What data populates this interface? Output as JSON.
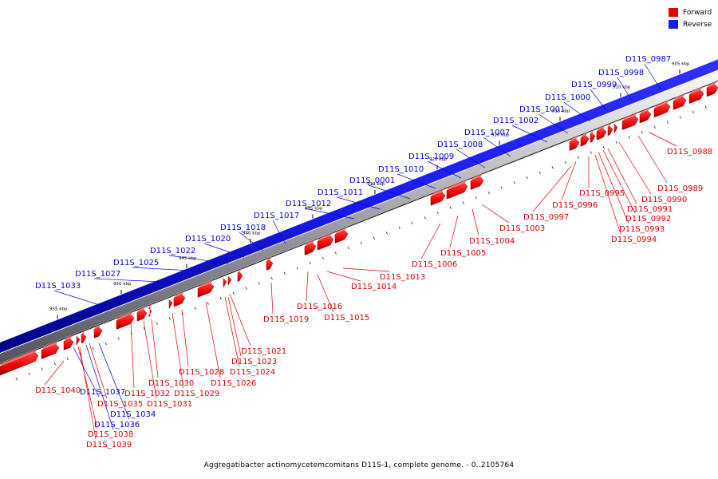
{
  "caption": "Aggregatibacter actinomycetemcomitans D11S-1, complete genome. - 0..2105764",
  "legend": [
    {
      "label": "Forward",
      "color": "#ee0000"
    },
    {
      "label": "Reverse",
      "color": "#1a1aee"
    }
  ],
  "colors": {
    "forward": "#ee0000",
    "forward_dark": "#990000",
    "reverse": "#1a1aee",
    "reverse_dark": "#000080"
  },
  "scale_unit": "kbp",
  "scale_ticks": [
    905,
    910,
    915,
    920,
    925,
    930,
    935,
    940,
    945,
    950,
    955
  ],
  "reverse_genes": [
    "D11S_0987",
    "D11S_0998",
    "D11S_0999",
    "D11S_1000",
    "D11S_1001",
    "D11S_1002",
    "D11S_1007",
    "D11S_1008",
    "D11S_1009",
    "D11S_1010",
    "D11S_0001",
    "D11S_1011",
    "D11S_1012",
    "D11S_1017",
    "D11S_1018",
    "D11S_1020",
    "D11S_1022",
    "D11S_1025",
    "D11S_1027",
    "D11S_1033",
    "D11S_1037",
    "D11S_1034",
    "D11S_1036"
  ],
  "forward_genes": [
    "D11S_0988",
    "D11S_0989",
    "D11S_0990",
    "D11S_0991",
    "D11S_0992",
    "D11S_0993",
    "D11S_0994",
    "D11S_0995",
    "D11S_0996",
    "D11S_0997",
    "D11S_1003",
    "D11S_1004",
    "D11S_1005",
    "D11S_1006",
    "D11S_1013",
    "D11S_1014",
    "D11S_1015",
    "D11S_1016",
    "D11S_1019",
    "D11S_1021",
    "D11S_1023",
    "D11S_1024",
    "D11S_1026",
    "D11S_1028",
    "D11S_1029",
    "D11S_1030",
    "D11S_1031",
    "D11S_1032",
    "D11S_1035",
    "D11S_1038",
    "D11S_1039",
    "D11S_1040"
  ]
}
